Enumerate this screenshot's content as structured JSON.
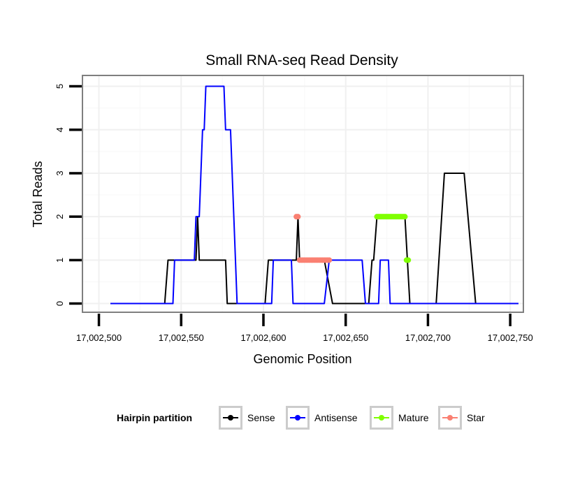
{
  "chart_data": {
    "type": "line",
    "title": "Small RNA-seq Read Density",
    "xlabel": "Genomic Position",
    "ylabel": "Total Reads",
    "xlim": [
      17002490,
      17002758
    ],
    "ylim": [
      -0.2,
      5.25
    ],
    "x_ticks": [
      17002500,
      17002550,
      17002600,
      17002650,
      17002700,
      17002750
    ],
    "x_tick_labels": [
      "17,002,500",
      "17,002,550",
      "17,002,600",
      "17,002,650",
      "17,002,700",
      "17,002,750"
    ],
    "y_ticks": [
      0,
      1,
      2,
      3,
      4,
      5
    ],
    "y_tick_labels": [
      "0",
      "1",
      "2",
      "3",
      "4",
      "5"
    ],
    "legend": {
      "title": "Hairpin partition",
      "position": "bottom",
      "entries": [
        {
          "label": "Sense",
          "color": "#000000"
        },
        {
          "label": "Antisense",
          "color": "#0000ff"
        },
        {
          "label": "Mature",
          "color": "#7fff00"
        },
        {
          "label": "Star",
          "color": "#fa8072"
        }
      ]
    },
    "series": [
      {
        "name": "Sense",
        "color": "#000000",
        "style": "line",
        "points": [
          [
            17002507,
            0
          ],
          [
            17002540,
            0
          ],
          [
            17002542,
            1
          ],
          [
            17002559,
            1
          ],
          [
            17002560,
            2
          ],
          [
            17002561,
            1
          ],
          [
            17002577,
            1
          ],
          [
            17002578,
            0
          ],
          [
            17002601,
            0
          ],
          [
            17002603,
            1
          ],
          [
            17002620,
            1
          ],
          [
            17002621,
            2
          ],
          [
            17002622,
            1
          ],
          [
            17002637,
            1
          ],
          [
            17002642,
            0
          ],
          [
            17002664,
            0
          ],
          [
            17002666,
            1
          ],
          [
            17002667,
            1
          ],
          [
            17002669,
            2
          ],
          [
            17002686,
            2
          ],
          [
            17002689,
            0
          ],
          [
            17002705,
            0
          ],
          [
            17002710,
            3
          ],
          [
            17002722,
            3
          ],
          [
            17002729,
            0
          ],
          [
            17002755,
            0
          ]
        ]
      },
      {
        "name": "Antisense",
        "color": "#0000ff",
        "style": "line",
        "points": [
          [
            17002507,
            0
          ],
          [
            17002545,
            0
          ],
          [
            17002546,
            1
          ],
          [
            17002558,
            1
          ],
          [
            17002559,
            2
          ],
          [
            17002561,
            2
          ],
          [
            17002563,
            4
          ],
          [
            17002564,
            4
          ],
          [
            17002565,
            5
          ],
          [
            17002576,
            5
          ],
          [
            17002577,
            4
          ],
          [
            17002580,
            4
          ],
          [
            17002582,
            2
          ],
          [
            17002584,
            0
          ],
          [
            17002594,
            0
          ],
          [
            17002605,
            0
          ],
          [
            17002606,
            1
          ],
          [
            17002617,
            1
          ],
          [
            17002618,
            0
          ],
          [
            17002637,
            0
          ],
          [
            17002640,
            1
          ],
          [
            17002660,
            1
          ],
          [
            17002662,
            0
          ],
          [
            17002670,
            0
          ],
          [
            17002671,
            1
          ],
          [
            17002676,
            1
          ],
          [
            17002677,
            0
          ],
          [
            17002728,
            0
          ],
          [
            17002732,
            0
          ],
          [
            17002755,
            0
          ]
        ]
      },
      {
        "name": "Mature",
        "color": "#7fff00",
        "style": "points",
        "points": [
          [
            17002669,
            2
          ],
          [
            17002670,
            2
          ],
          [
            17002671,
            2
          ],
          [
            17002672,
            2
          ],
          [
            17002673,
            2
          ],
          [
            17002674,
            2
          ],
          [
            17002675,
            2
          ],
          [
            17002676,
            2
          ],
          [
            17002677,
            2
          ],
          [
            17002678,
            2
          ],
          [
            17002679,
            2
          ],
          [
            17002680,
            2
          ],
          [
            17002681,
            2
          ],
          [
            17002682,
            2
          ],
          [
            17002683,
            2
          ],
          [
            17002684,
            2
          ],
          [
            17002685,
            2
          ],
          [
            17002686,
            2
          ],
          [
            17002687,
            1
          ],
          [
            17002688,
            1
          ]
        ]
      },
      {
        "name": "Star",
        "color": "#fa8072",
        "style": "points",
        "points": [
          [
            17002620,
            2
          ],
          [
            17002621,
            2
          ],
          [
            17002622,
            1
          ],
          [
            17002623,
            1
          ],
          [
            17002624,
            1
          ],
          [
            17002625,
            1
          ],
          [
            17002626,
            1
          ],
          [
            17002627,
            1
          ],
          [
            17002628,
            1
          ],
          [
            17002629,
            1
          ],
          [
            17002630,
            1
          ],
          [
            17002631,
            1
          ],
          [
            17002632,
            1
          ],
          [
            17002633,
            1
          ],
          [
            17002634,
            1
          ],
          [
            17002635,
            1
          ],
          [
            17002636,
            1
          ],
          [
            17002637,
            1
          ],
          [
            17002638,
            1
          ],
          [
            17002639,
            1
          ],
          [
            17002640,
            1
          ]
        ]
      }
    ]
  }
}
